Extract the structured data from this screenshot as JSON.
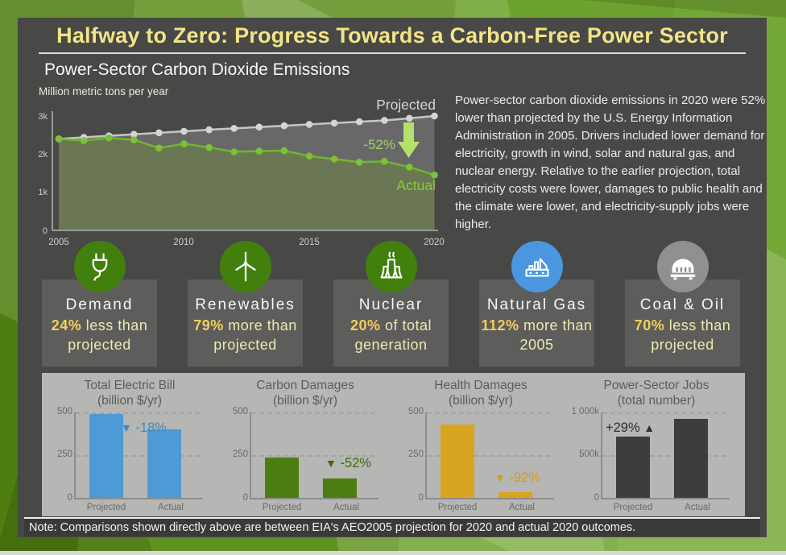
{
  "header": {
    "title": "Halfway to Zero: Progress Towards a Carbon-Free Power Sector",
    "subtitle": "Power-Sector Carbon Dioxide Emissions"
  },
  "summary_text": "Power-sector carbon dioxide emissions in 2020 were 52% lower than projected by the U.S. Energy Information Administration in 2005. Drivers included lower demand for electricity, growth in wind, solar and natural gas, and nuclear energy. Relative to the earlier projection, total electricity costs were lower, damages to public health and the climate were lower, and electricity-supply jobs were higher.",
  "note": "Note: Comparisons shown directly above are between EIA's AEO2005 projection for 2020 and actual 2020 outcomes.",
  "colors": {
    "accent_yellow": "#f2e488",
    "stat_number_yellow": "#f3cf5c",
    "actual_green": "#7cc236",
    "projected_gray": "#c6c6c4",
    "circle_green": "#41800d",
    "circle_blue": "#4a96e0",
    "circle_gray": "#909090"
  },
  "stats": [
    {
      "icon": "plug-icon",
      "label": "Demand",
      "value": "24%",
      "description": "less than projected",
      "circle_color": "#41800d"
    },
    {
      "icon": "wind-turbine-icon",
      "label": "Renewables",
      "value": "79%",
      "description": "more than projected",
      "circle_color": "#41800d"
    },
    {
      "icon": "cooling-tower-icon",
      "label": "Nuclear",
      "value": "20%",
      "description": "of total generation",
      "circle_color": "#41800d"
    },
    {
      "icon": "factory-icon",
      "label": "Natural Gas",
      "value": "112%",
      "description": "more than 2005",
      "circle_color": "#4a96e0"
    },
    {
      "icon": "coal-car-icon",
      "label": "Coal & Oil",
      "value": "70%",
      "description": "less than projected",
      "circle_color": "#909090"
    }
  ],
  "chart_data": [
    {
      "id": "emissions",
      "type": "line",
      "title": "Power-Sector Carbon Dioxide Emissions",
      "ylabel": "Million metric tons per year",
      "ylim": [
        0,
        3000
      ],
      "y_ticks": [
        "3k",
        "2k",
        "1k",
        "0"
      ],
      "x_ticks": [
        "2005",
        "2010",
        "2015",
        "2020"
      ],
      "x": [
        2005,
        2006,
        2007,
        2008,
        2009,
        2010,
        2011,
        2012,
        2013,
        2014,
        2015,
        2016,
        2017,
        2018,
        2019,
        2020
      ],
      "series": [
        {
          "name": "Projected",
          "values": [
            2400,
            2440,
            2480,
            2520,
            2560,
            2600,
            2640,
            2675,
            2710,
            2745,
            2780,
            2815,
            2850,
            2885,
            2940,
            3000
          ]
        },
        {
          "name": "Actual",
          "values": [
            2400,
            2355,
            2425,
            2375,
            2160,
            2270,
            2175,
            2060,
            2080,
            2090,
            1950,
            1870,
            1790,
            1810,
            1660,
            1450
          ]
        }
      ],
      "annotation": "-52%",
      "legend_labels": {
        "projected": "Projected",
        "actual": "Actual"
      }
    },
    {
      "id": "electric-bill",
      "type": "bar",
      "title": "Total Electric Bill",
      "unit": "(billion $/yr)",
      "categories": [
        "Projected",
        "Actual"
      ],
      "values": [
        480,
        395
      ],
      "ylim": [
        0,
        500
      ],
      "y_ticks": [
        "500",
        "250",
        "0"
      ],
      "annotation": "-18%",
      "direction": "down",
      "bar_color": "#4e9ad6",
      "anno_color": "#3d87c8"
    },
    {
      "id": "carbon-damages",
      "type": "bar",
      "title": "Carbon Damages",
      "unit": "(billion $/yr)",
      "categories": [
        "Projected",
        "Actual"
      ],
      "values": [
        230,
        110
      ],
      "ylim": [
        0,
        500
      ],
      "y_ticks": [
        "500",
        "250",
        "0"
      ],
      "annotation": "-52%",
      "direction": "down",
      "bar_color": "#4d7d12",
      "anno_color": "#3f6b0d"
    },
    {
      "id": "health-damages",
      "type": "bar",
      "title": "Health Damages",
      "unit": "(billion $/yr)",
      "categories": [
        "Projected",
        "Actual"
      ],
      "values": [
        420,
        34
      ],
      "ylim": [
        0,
        500
      ],
      "y_ticks": [
        "500",
        "250",
        "0"
      ],
      "annotation": "-92%",
      "direction": "down",
      "bar_color": "#d7a51f",
      "anno_color": "#cf9d14"
    },
    {
      "id": "power-sector-jobs",
      "type": "bar",
      "title": "Power-Sector Jobs",
      "unit": "(total number)",
      "categories": [
        "Projected",
        "Actual"
      ],
      "values": [
        700,
        905
      ],
      "ylim": [
        0,
        1000
      ],
      "y_ticks": [
        "1 000k",
        "500k",
        "0"
      ],
      "annotation": "+29%",
      "direction": "up",
      "bar_color": "#3d3d3b",
      "anno_color": "#2f2f2d"
    }
  ]
}
